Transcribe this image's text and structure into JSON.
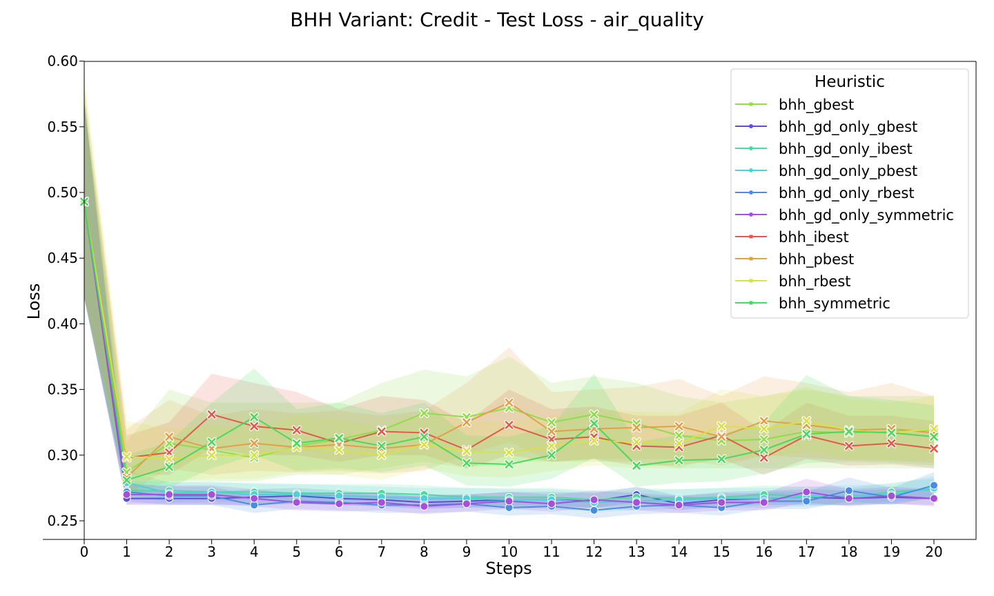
{
  "chart_data": {
    "type": "line",
    "title": "BHH Variant: Credit - Test Loss - air_quality",
    "xlabel": "Steps",
    "ylabel": "Loss",
    "xlim": [
      0,
      21
    ],
    "ylim": [
      0.235,
      0.6
    ],
    "x_ticks": [
      0,
      1,
      2,
      3,
      4,
      5,
      6,
      7,
      8,
      9,
      10,
      11,
      12,
      13,
      14,
      15,
      16,
      17,
      18,
      19,
      20
    ],
    "y_ticks": [
      0.25,
      0.3,
      0.35,
      0.4,
      0.45,
      0.5,
      0.55,
      0.6
    ],
    "y_tick_labels": [
      "0.25",
      "0.30",
      "0.35",
      "0.40",
      "0.45",
      "0.50",
      "0.55",
      "0.60"
    ],
    "grid": false,
    "legend": {
      "title": "Heuristic",
      "placement": "top-right"
    },
    "x": [
      0,
      1,
      2,
      3,
      4,
      5,
      6,
      7,
      8,
      9,
      10,
      11,
      12,
      13,
      14,
      15,
      16,
      17,
      18,
      19,
      20
    ],
    "series": [
      {
        "name": "bhh_gbest",
        "color": "#8fdd4a",
        "marker": "x",
        "values": [
          0.493,
          0.287,
          0.309,
          0.304,
          0.298,
          0.307,
          0.312,
          0.319,
          0.332,
          0.329,
          0.336,
          0.325,
          0.331,
          0.324,
          0.315,
          0.311,
          0.312,
          0.318,
          0.317,
          0.318,
          0.319
        ],
        "lower": [
          0.42,
          0.27,
          0.28,
          0.28,
          0.28,
          0.285,
          0.285,
          0.29,
          0.295,
          0.29,
          0.295,
          0.295,
          0.295,
          0.295,
          0.29,
          0.29,
          0.29,
          0.29,
          0.29,
          0.29,
          0.29
        ],
        "upper": [
          0.58,
          0.31,
          0.35,
          0.34,
          0.34,
          0.34,
          0.34,
          0.355,
          0.365,
          0.36,
          0.375,
          0.355,
          0.36,
          0.355,
          0.345,
          0.34,
          0.345,
          0.35,
          0.345,
          0.345,
          0.345
        ]
      },
      {
        "name": "bhh_gd_only_gbest",
        "color": "#5b4fd9",
        "marker": "o",
        "values": [
          0.493,
          0.267,
          0.267,
          0.267,
          0.268,
          0.269,
          0.267,
          0.266,
          0.264,
          0.265,
          0.266,
          0.266,
          0.265,
          0.27,
          0.263,
          0.266,
          0.267,
          0.268,
          0.267,
          0.268,
          0.267
        ],
        "lower": [
          0.42,
          0.262,
          0.262,
          0.262,
          0.262,
          0.263,
          0.262,
          0.261,
          0.259,
          0.26,
          0.261,
          0.261,
          0.26,
          0.264,
          0.258,
          0.261,
          0.262,
          0.262,
          0.262,
          0.263,
          0.262
        ],
        "upper": [
          0.57,
          0.274,
          0.272,
          0.272,
          0.274,
          0.275,
          0.273,
          0.271,
          0.27,
          0.27,
          0.272,
          0.272,
          0.271,
          0.276,
          0.269,
          0.272,
          0.273,
          0.274,
          0.273,
          0.274,
          0.274
        ]
      },
      {
        "name": "bhh_gd_only_ibest",
        "color": "#4fd99a",
        "marker": "o",
        "values": [
          0.493,
          0.273,
          0.273,
          0.272,
          0.272,
          0.271,
          0.271,
          0.271,
          0.27,
          0.268,
          0.268,
          0.268,
          0.266,
          0.268,
          0.267,
          0.268,
          0.27,
          0.269,
          0.268,
          0.272,
          0.274
        ],
        "lower": [
          0.42,
          0.266,
          0.266,
          0.266,
          0.266,
          0.265,
          0.265,
          0.265,
          0.264,
          0.262,
          0.262,
          0.262,
          0.26,
          0.262,
          0.261,
          0.262,
          0.264,
          0.263,
          0.262,
          0.265,
          0.267
        ],
        "upper": [
          0.57,
          0.28,
          0.28,
          0.279,
          0.279,
          0.278,
          0.278,
          0.278,
          0.277,
          0.275,
          0.275,
          0.275,
          0.273,
          0.275,
          0.274,
          0.275,
          0.277,
          0.276,
          0.275,
          0.279,
          0.282
        ]
      },
      {
        "name": "bhh_gd_only_pbest",
        "color": "#4dd0d9",
        "marker": "o",
        "values": [
          0.493,
          0.279,
          0.271,
          0.272,
          0.27,
          0.27,
          0.269,
          0.268,
          0.267,
          0.267,
          0.266,
          0.266,
          0.264,
          0.265,
          0.266,
          0.267,
          0.267,
          0.268,
          0.269,
          0.27,
          0.275
        ],
        "lower": [
          0.42,
          0.27,
          0.264,
          0.265,
          0.263,
          0.263,
          0.262,
          0.261,
          0.26,
          0.26,
          0.259,
          0.259,
          0.257,
          0.258,
          0.259,
          0.26,
          0.26,
          0.261,
          0.262,
          0.263,
          0.267
        ],
        "upper": [
          0.57,
          0.288,
          0.279,
          0.28,
          0.278,
          0.278,
          0.277,
          0.276,
          0.275,
          0.275,
          0.274,
          0.274,
          0.272,
          0.273,
          0.274,
          0.275,
          0.275,
          0.276,
          0.277,
          0.278,
          0.284
        ]
      },
      {
        "name": "bhh_gd_only_rbest",
        "color": "#4a8de0",
        "marker": "o",
        "values": [
          0.493,
          0.272,
          0.269,
          0.269,
          0.262,
          0.265,
          0.264,
          0.262,
          0.262,
          0.263,
          0.26,
          0.261,
          0.258,
          0.261,
          0.262,
          0.26,
          0.265,
          0.265,
          0.273,
          0.268,
          0.277
        ],
        "lower": [
          0.42,
          0.265,
          0.262,
          0.262,
          0.256,
          0.259,
          0.258,
          0.256,
          0.256,
          0.257,
          0.254,
          0.255,
          0.252,
          0.255,
          0.256,
          0.254,
          0.259,
          0.259,
          0.265,
          0.262,
          0.268
        ],
        "upper": [
          0.57,
          0.279,
          0.276,
          0.276,
          0.269,
          0.272,
          0.271,
          0.269,
          0.269,
          0.27,
          0.267,
          0.268,
          0.265,
          0.268,
          0.269,
          0.267,
          0.272,
          0.272,
          0.283,
          0.275,
          0.287
        ]
      },
      {
        "name": "bhh_gd_only_symmetric",
        "color": "#a64fd9",
        "marker": "o",
        "values": [
          0.493,
          0.27,
          0.27,
          0.27,
          0.267,
          0.264,
          0.263,
          0.264,
          0.261,
          0.263,
          0.265,
          0.263,
          0.266,
          0.264,
          0.262,
          0.264,
          0.264,
          0.272,
          0.267,
          0.269,
          0.267
        ],
        "lower": [
          0.42,
          0.263,
          0.263,
          0.263,
          0.261,
          0.258,
          0.257,
          0.258,
          0.255,
          0.257,
          0.259,
          0.257,
          0.26,
          0.258,
          0.256,
          0.258,
          0.258,
          0.264,
          0.261,
          0.263,
          0.261
        ],
        "upper": [
          0.57,
          0.277,
          0.277,
          0.277,
          0.274,
          0.271,
          0.27,
          0.271,
          0.268,
          0.27,
          0.272,
          0.27,
          0.273,
          0.271,
          0.269,
          0.271,
          0.271,
          0.282,
          0.274,
          0.276,
          0.274
        ]
      },
      {
        "name": "bhh_ibest",
        "color": "#e05a4a",
        "marker": "x",
        "values": [
          0.493,
          0.298,
          0.302,
          0.331,
          0.322,
          0.319,
          0.309,
          0.318,
          0.317,
          0.304,
          0.323,
          0.312,
          0.314,
          0.307,
          0.306,
          0.315,
          0.298,
          0.315,
          0.307,
          0.309,
          0.305
        ],
        "lower": [
          0.42,
          0.285,
          0.285,
          0.305,
          0.3,
          0.3,
          0.295,
          0.3,
          0.3,
          0.29,
          0.3,
          0.295,
          0.297,
          0.292,
          0.292,
          0.297,
          0.285,
          0.297,
          0.292,
          0.293,
          0.29
        ],
        "upper": [
          0.57,
          0.315,
          0.325,
          0.362,
          0.355,
          0.348,
          0.335,
          0.345,
          0.342,
          0.325,
          0.35,
          0.335,
          0.337,
          0.33,
          0.33,
          0.34,
          0.318,
          0.34,
          0.33,
          0.33,
          0.326
        ]
      },
      {
        "name": "bhh_pbest",
        "color": "#e0a04a",
        "marker": "x",
        "values": [
          0.493,
          0.283,
          0.314,
          0.305,
          0.309,
          0.306,
          0.308,
          0.305,
          0.308,
          0.325,
          0.34,
          0.318,
          0.32,
          0.321,
          0.322,
          0.314,
          0.326,
          0.323,
          0.319,
          0.32,
          0.317
        ],
        "lower": [
          0.42,
          0.27,
          0.29,
          0.285,
          0.288,
          0.287,
          0.288,
          0.286,
          0.288,
          0.3,
          0.31,
          0.295,
          0.297,
          0.297,
          0.297,
          0.292,
          0.3,
          0.298,
          0.296,
          0.296,
          0.294
        ],
        "upper": [
          0.58,
          0.32,
          0.342,
          0.33,
          0.335,
          0.332,
          0.334,
          0.33,
          0.334,
          0.355,
          0.382,
          0.348,
          0.35,
          0.352,
          0.358,
          0.345,
          0.36,
          0.355,
          0.348,
          0.355,
          0.345
        ]
      },
      {
        "name": "bhh_rbest",
        "color": "#d9e04a",
        "marker": "x",
        "values": [
          0.493,
          0.299,
          0.297,
          0.3,
          0.3,
          0.306,
          0.304,
          0.3,
          0.308,
          0.303,
          0.302,
          0.307,
          0.311,
          0.31,
          0.309,
          0.322,
          0.32,
          0.326,
          0.319,
          0.317,
          0.32
        ],
        "lower": [
          0.42,
          0.28,
          0.28,
          0.282,
          0.282,
          0.287,
          0.285,
          0.281,
          0.29,
          0.284,
          0.283,
          0.288,
          0.292,
          0.29,
          0.29,
          0.3,
          0.298,
          0.303,
          0.297,
          0.295,
          0.297
        ],
        "upper": [
          0.59,
          0.326,
          0.32,
          0.322,
          0.322,
          0.33,
          0.327,
          0.322,
          0.332,
          0.326,
          0.325,
          0.33,
          0.335,
          0.333,
          0.332,
          0.35,
          0.345,
          0.352,
          0.343,
          0.34,
          0.345
        ]
      },
      {
        "name": "bhh_symmetric",
        "color": "#4ad95a",
        "marker": "x",
        "values": [
          0.493,
          0.281,
          0.291,
          0.31,
          0.329,
          0.309,
          0.313,
          0.307,
          0.314,
          0.294,
          0.293,
          0.3,
          0.324,
          0.292,
          0.296,
          0.297,
          0.304,
          0.316,
          0.318,
          0.317,
          0.314
        ],
        "lower": [
          0.42,
          0.27,
          0.275,
          0.29,
          0.3,
          0.288,
          0.29,
          0.287,
          0.292,
          0.277,
          0.276,
          0.282,
          0.298,
          0.276,
          0.279,
          0.28,
          0.286,
          0.294,
          0.295,
          0.294,
          0.292
        ],
        "upper": [
          0.57,
          0.3,
          0.31,
          0.34,
          0.366,
          0.335,
          0.34,
          0.332,
          0.34,
          0.315,
          0.314,
          0.322,
          0.362,
          0.31,
          0.315,
          0.316,
          0.325,
          0.361,
          0.345,
          0.342,
          0.338
        ]
      }
    ]
  }
}
